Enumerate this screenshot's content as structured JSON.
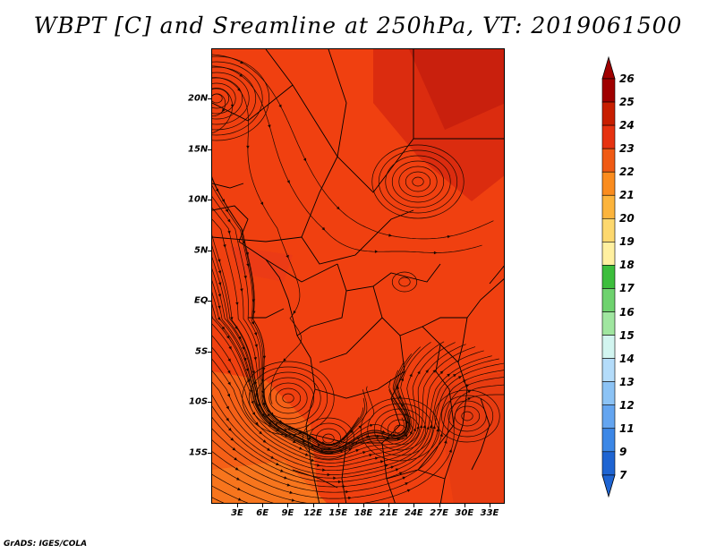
{
  "title": "WBPT [C] and Sreamline at 250hPa, VT: 2019061500",
  "credit": "GrADS: IGES/COLA",
  "map": {
    "field": "WBPT [C]",
    "vector_field": "Streamline",
    "level": "250hPa",
    "valid_time": "2019061500",
    "lat_labels": [
      "20N",
      "15N",
      "10N",
      "5N",
      "EQ",
      "5S",
      "10S",
      "15S"
    ],
    "lon_labels": [
      "3E",
      "6E",
      "9E",
      "12E",
      "15E",
      "18E",
      "21E",
      "24E",
      "27E",
      "30E",
      "33E"
    ],
    "background_color": "#f04010",
    "warm_patch_color": "#d82a10",
    "cooler_patch_color": "#f56418"
  },
  "colorbar": {
    "labels": [
      "26",
      "25",
      "24",
      "23",
      "22",
      "21",
      "20",
      "19",
      "18",
      "17",
      "16",
      "15",
      "14",
      "13",
      "12",
      "11",
      "9",
      "7"
    ],
    "colors": [
      "#a00000",
      "#c81e00",
      "#e63210",
      "#f05a14",
      "#fa8c1e",
      "#fcb43c",
      "#fdd86e",
      "#fff0a0",
      "#3cbe3c",
      "#6ed26e",
      "#a0e6a0",
      "#d2f5f0",
      "#b4dcfa",
      "#8cc3f5",
      "#64a5f0",
      "#3c87e6",
      "#1e64d2"
    ],
    "extend_top_color": "#a00000",
    "extend_bottom_color": "#1e64d2"
  }
}
